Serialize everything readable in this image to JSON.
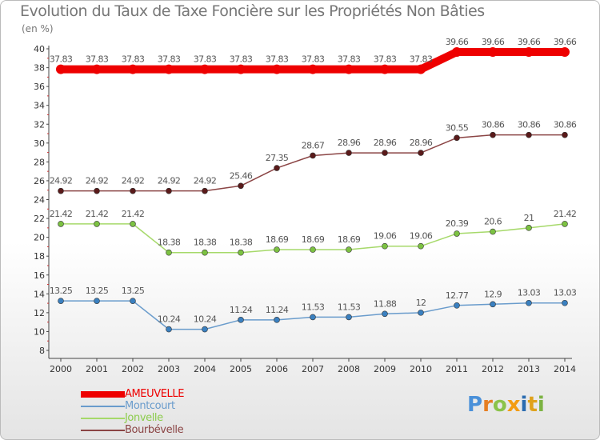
{
  "title": "Evolution du Taux de Taxe Foncière sur les Propriétés Non Bâties",
  "unit": "(en %)",
  "logo": {
    "text": "Proxiti",
    "letters": [
      "P",
      "r",
      "o",
      "x",
      "i",
      "t",
      "i"
    ],
    "colors": [
      "#4a90d9",
      "#e67e22",
      "#8bc34a",
      "#f39c12",
      "#2b6cb0",
      "#e0a21b",
      "#7cb342"
    ]
  },
  "chart_data": {
    "type": "line",
    "title": "Evolution du Taux de Taxe Foncière sur les Propriétés Non Bâties",
    "ylabel": "(en %)",
    "xlabel": "",
    "ylim": [
      8,
      40
    ],
    "yticks": [
      8,
      10,
      12,
      14,
      16,
      18,
      20,
      22,
      24,
      26,
      28,
      30,
      32,
      34,
      36,
      38,
      40
    ],
    "grid": false,
    "legend_position": "bottom-left",
    "categories": [
      "2000",
      "2001",
      "2002",
      "2003",
      "2004",
      "2005",
      "2006",
      "2007",
      "2008",
      "2009",
      "2010",
      "2011",
      "2012",
      "2013",
      "2014"
    ],
    "series": [
      {
        "name": "AMEUVELLE",
        "color": "#ee0000",
        "thick": true,
        "values": [
          37.83,
          37.83,
          37.83,
          37.83,
          37.83,
          37.83,
          37.83,
          37.83,
          37.83,
          37.83,
          37.83,
          39.66,
          39.66,
          39.66,
          39.66
        ],
        "labels": [
          "37.83",
          "37.83",
          "37.83",
          "37.83",
          "37.83",
          "37.83",
          "37.83",
          "37.83",
          "37.83",
          "37.83",
          "37.83",
          "39.66",
          "39.66",
          "39.66",
          "39.66"
        ]
      },
      {
        "name": "Montcourt",
        "color": "#6a9ccc",
        "marker": "#3a80c0",
        "values": [
          13.25,
          13.25,
          13.25,
          10.24,
          10.24,
          11.24,
          11.24,
          11.53,
          11.53,
          11.88,
          12,
          12.77,
          12.9,
          13.03,
          13.03
        ],
        "labels": [
          "13.25",
          "13.25",
          "13.25",
          "10.24",
          "10.24",
          "11.24",
          "11.24",
          "11.53",
          "11.53",
          "11.88",
          "12",
          "12.77",
          "12.9",
          "13.03",
          "13.03"
        ]
      },
      {
        "name": "Jonvelle",
        "color": "#a6d96a",
        "marker": "#7cc242",
        "values": [
          21.42,
          21.42,
          21.42,
          18.38,
          18.38,
          18.38,
          18.69,
          18.69,
          18.69,
          19.06,
          19.06,
          20.39,
          20.6,
          21,
          21.42
        ],
        "labels": [
          "21.42",
          "21.42",
          "21.42",
          "18.38",
          "18.38",
          "18.38",
          "18.69",
          "18.69",
          "18.69",
          "19.06",
          "19.06",
          "20.39",
          "20.6",
          "21",
          "21.42"
        ]
      },
      {
        "name": "Bourbévelle",
        "color": "#8b4545",
        "marker": "#5a1a1a",
        "values": [
          24.92,
          24.92,
          24.92,
          24.92,
          24.92,
          25.46,
          27.35,
          28.67,
          28.96,
          28.96,
          28.96,
          30.55,
          30.86,
          30.86,
          30.86
        ],
        "labels": [
          "24.92",
          "24.92",
          "24.92",
          "24.92",
          "24.92",
          "25.46",
          "27.35",
          "28.67",
          "28.96",
          "28.96",
          "28.96",
          "30.55",
          "30.86",
          "30.86",
          "30.86"
        ]
      }
    ]
  }
}
